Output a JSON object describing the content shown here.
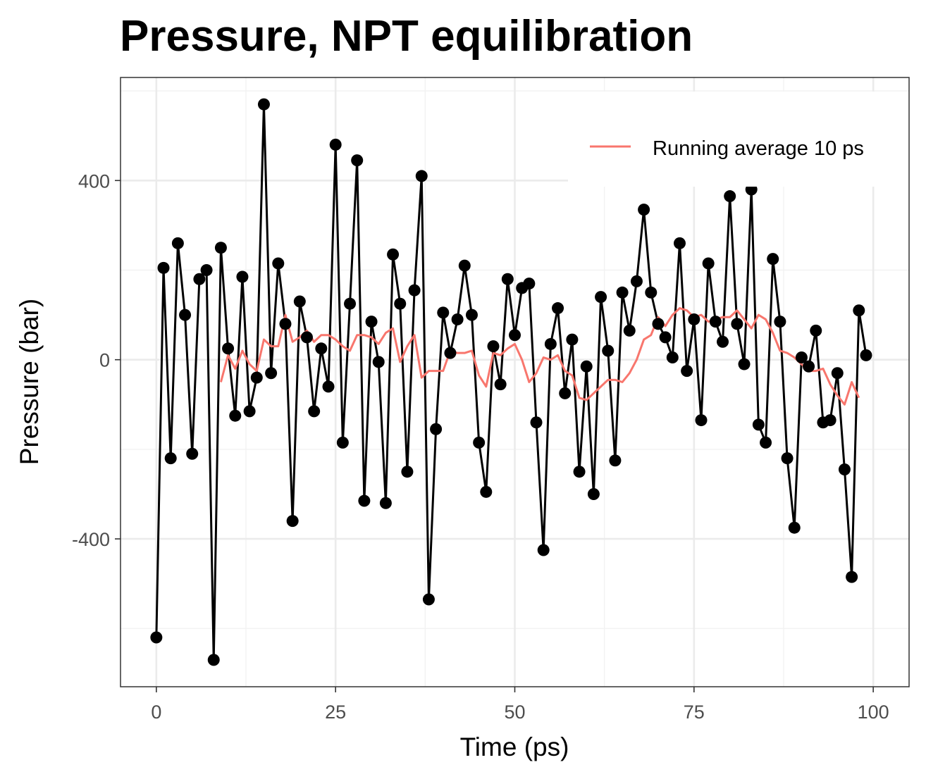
{
  "chart_data": {
    "type": "line",
    "title": "Pressure, NPT equilibration",
    "xlabel": "Time (ps)",
    "ylabel": "Pressure (bar)",
    "xlim": [
      -5,
      105
    ],
    "ylim": [
      -730,
      630
    ],
    "x_ticks": [
      0,
      25,
      50,
      75,
      100
    ],
    "y_ticks": [
      -400,
      0,
      400
    ],
    "grid": true,
    "legend_position": "top-right",
    "colors": {
      "pressure": "#000000",
      "running_average": "#f8766d"
    },
    "series": [
      {
        "values": [
          -620,
          205,
          -220,
          260,
          100,
          -210,
          180,
          200,
          -670,
          250,
          25,
          -125,
          185,
          -115,
          -40,
          570,
          -30,
          215,
          80,
          -360,
          130,
          50,
          -115,
          25,
          -60,
          480,
          -185,
          125,
          445,
          -315,
          85,
          -5,
          -320,
          235,
          125,
          -250,
          155,
          410,
          -535,
          -155,
          105,
          15,
          90,
          210,
          100,
          -185,
          -295,
          30,
          -55,
          180,
          55,
          160,
          170,
          -140,
          -425,
          35,
          115,
          -75,
          45,
          -250,
          -15,
          -300,
          140,
          20,
          -225,
          150,
          65,
          175,
          335,
          150,
          80,
          50,
          5,
          260,
          -25,
          90,
          -135,
          215,
          85,
          40,
          365,
          80,
          -10,
          380,
          -145,
          -185,
          225,
          85,
          -220,
          -375,
          5,
          -15,
          65,
          -140,
          -135,
          -30,
          -245,
          -485,
          110,
          10
        ]
      },
      {
        "name": "Running average 10 ps",
        "x_start": 9,
        "values": [
          -50,
          10,
          -20,
          20,
          -10,
          -25,
          45,
          30,
          30,
          100,
          40,
          50,
          65,
          40,
          55,
          55,
          45,
          30,
          20,
          55,
          55,
          50,
          35,
          60,
          70,
          -5,
          30,
          55,
          -40,
          -25,
          -25,
          -25,
          20,
          15,
          15,
          20,
          -35,
          -60,
          15,
          10,
          25,
          35,
          0,
          -50,
          -30,
          5,
          0,
          10,
          -25,
          -35,
          -85,
          -90,
          -75,
          -60,
          -45,
          -45,
          -50,
          -30,
          0,
          45,
          55,
          95,
          75,
          100,
          115,
          110,
          95,
          100,
          85,
          90,
          95,
          95,
          110,
          90,
          70,
          100,
          90,
          60,
          20,
          15,
          5,
          -10,
          -25,
          -25,
          -20,
          -55,
          -80,
          -100,
          -50,
          -85
        ]
      }
    ]
  }
}
